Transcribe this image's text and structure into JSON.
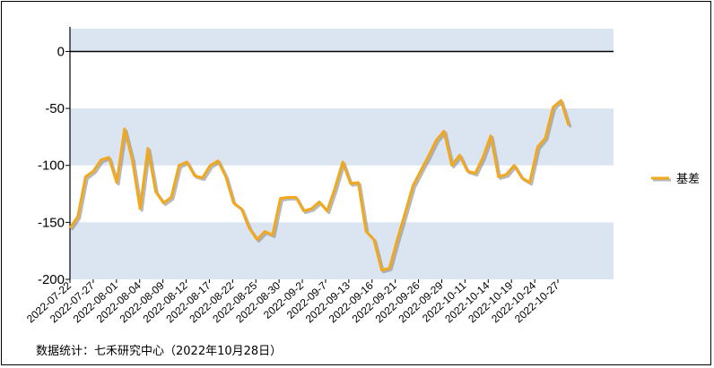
{
  "chart_data": {
    "type": "line",
    "title": "",
    "xlabel": "",
    "ylabel": "",
    "ylim": [
      -200,
      20
    ],
    "yticks": [
      0,
      -50,
      -100,
      -150,
      -200
    ],
    "grid": false,
    "legend_placement": "right",
    "band_color": "#dbe5f1",
    "line_color": "#f2a81d",
    "shadow_color": "#8a8a8a",
    "x_tick_labels": [
      "2022-07-22",
      "2022-07-27",
      "2022-08-01",
      "2022-08-04",
      "2022-08-09",
      "2022-08-12",
      "2022-08-17",
      "2022-08-22",
      "2022-08-25",
      "2022-08-30",
      "2022-09-2",
      "2022-09-7",
      "2022-09-13",
      "2022-09-16",
      "2022-09-21",
      "2022-09-26",
      "2022-09-29",
      "2022-10-11",
      "2022-10-14",
      "2022-10-19",
      "2022-10-24",
      "2022-10-27"
    ],
    "series": [
      {
        "name": "基差",
        "values": [
          -155,
          -145,
          -110,
          -105,
          -95,
          -93,
          -115,
          -68,
          -95,
          -138,
          -85,
          -123,
          -133,
          -128,
          -100,
          -97,
          -109,
          -111,
          -100,
          -96,
          -110,
          -133,
          -138,
          -155,
          -165,
          -158,
          -161,
          -129,
          -128,
          -128,
          -140,
          -138,
          -132,
          -140,
          -120,
          -97,
          -116,
          -115,
          -158,
          -165,
          -192,
          -190,
          -165,
          -142,
          -118,
          -105,
          -92,
          -78,
          -70,
          -100,
          -91,
          -105,
          -107,
          -93,
          -74,
          -110,
          -108,
          -100,
          -111,
          -115,
          -84,
          -76,
          -49,
          -43,
          -65
        ]
      }
    ]
  },
  "source_text": "数据统计：七禾研究中心（2022年10月28日）"
}
